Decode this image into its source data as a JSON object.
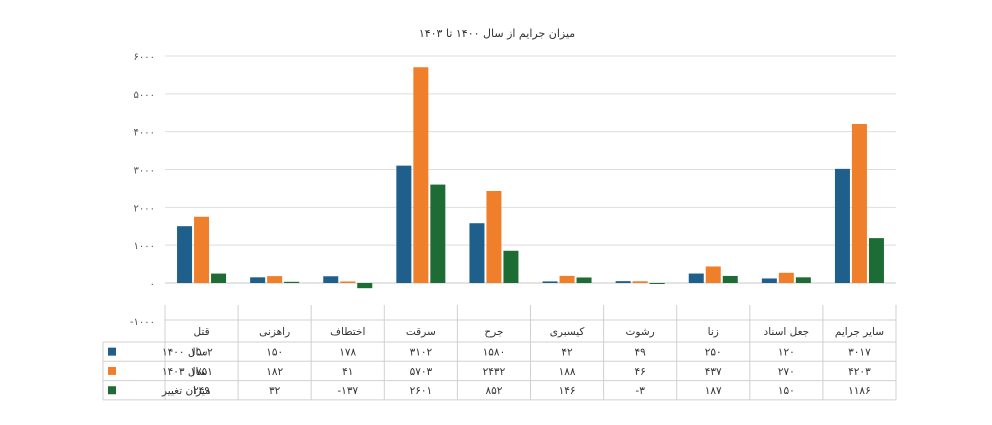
{
  "chart_data": {
    "type": "bar",
    "title": "میزان جرایم از سال ۱۴۰۰ تا ۱۴۰۳",
    "categories": [
      "قتل",
      "راهزنی",
      "اختطاف",
      "سرقت",
      "جرح",
      "کیسبری",
      "رشوت",
      "زنا",
      "جعل اسناد",
      "سایر جرایم"
    ],
    "series": [
      {
        "name": "سال ۱۴۰۰",
        "color": "#1f5f8b",
        "values": [
          1502,
          150,
          178,
          3102,
          1580,
          42,
          49,
          250,
          120,
          3017
        ],
        "labels": [
          "۱۵۰۲",
          "۱۵۰",
          "۱۷۸",
          "۳۱۰۲",
          "۱۵۸۰",
          "۴۲",
          "۴۹",
          "۲۵۰",
          "۱۲۰",
          "۳۰۱۷"
        ]
      },
      {
        "name": "سال ۱۴۰۳",
        "color": "#f07f2c",
        "values": [
          1751,
          182,
          41,
          5703,
          2432,
          188,
          46,
          437,
          270,
          4203
        ],
        "labels": [
          "۱۷۵۱",
          "۱۸۲",
          "۴۱",
          "۵۷۰۳",
          "۲۴۳۲",
          "۱۸۸",
          "۴۶",
          "۴۳۷",
          "۲۷۰",
          "۴۲۰۳"
        ]
      },
      {
        "name": "میزان تغییر",
        "color": "#1d6b35",
        "values": [
          249,
          32,
          -137,
          2601,
          852,
          146,
          -3,
          187,
          150,
          1186
        ],
        "labels": [
          "۲۴۹",
          "۳۲",
          "-۱۳۷",
          "۲۶۰۱",
          "۸۵۲",
          "۱۴۶",
          "-۳",
          "۱۸۷",
          "۱۵۰",
          "۱۱۸۶"
        ]
      }
    ],
    "ylim": [
      -1000,
      6000
    ],
    "yticks": [
      -1000,
      0,
      1000,
      2000,
      3000,
      4000,
      5000,
      6000
    ],
    "ytick_labels": [
      "-۱۰۰۰",
      "۰",
      "۱۰۰۰",
      "۲۰۰۰",
      "۳۰۰۰",
      "۴۰۰۰",
      "۵۰۰۰",
      "۶۰۰۰"
    ],
    "grid": true,
    "legend": "data-table"
  }
}
